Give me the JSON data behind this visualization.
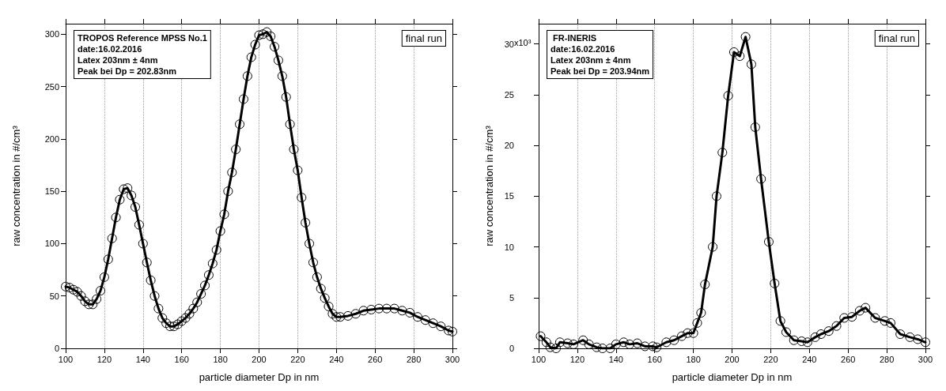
{
  "chart_data": [
    {
      "type": "line",
      "xlabel": "particle diameter Dp in nm",
      "ylabel": "raw concentration in #/cm³",
      "marker": "circle",
      "line_style": "solid",
      "grid": "x",
      "annotations": [
        "TROPOS Reference MPSS No.1\ndate:16.02.2016\nLatex 203nm ± 4nm\nPeak bei Dp = 202.83nm",
        "final run"
      ],
      "xlim": [
        100,
        300
      ],
      "xticks": [
        100,
        120,
        140,
        160,
        180,
        200,
        220,
        240,
        260,
        280,
        300
      ],
      "ylim": [
        0,
        310
      ],
      "yticks": [
        0,
        50,
        100,
        150,
        200,
        250,
        300
      ],
      "series": [
        {
          "color": "#000000",
          "x": [
            100,
            102,
            104,
            106,
            108,
            110,
            112,
            114,
            116,
            118,
            120,
            122,
            124,
            126,
            128,
            130,
            132,
            134,
            136,
            138,
            140,
            142,
            144,
            146,
            148,
            150,
            152,
            154,
            156,
            158,
            160,
            162,
            164,
            166,
            168,
            170,
            172,
            174,
            176,
            178,
            180,
            182,
            184,
            186,
            188,
            190,
            192,
            194,
            196,
            198,
            200,
            202,
            204,
            206,
            208,
            210,
            212,
            214,
            216,
            218,
            220,
            222,
            224,
            226,
            228,
            230,
            232,
            234,
            236,
            238,
            240,
            242,
            246,
            250,
            254,
            258,
            262,
            266,
            270,
            274,
            278,
            282,
            286,
            290,
            294,
            298,
            300
          ],
          "values": [
            59,
            58,
            56,
            54,
            50,
            45,
            42,
            42,
            47,
            55,
            68,
            85,
            105,
            125,
            142,
            152,
            153,
            146,
            135,
            118,
            100,
            82,
            65,
            50,
            38,
            29,
            24,
            21,
            21,
            23,
            26,
            29,
            33,
            38,
            44,
            52,
            60,
            70,
            81,
            94,
            112,
            128,
            150,
            168,
            190,
            214,
            238,
            260,
            278,
            290,
            299,
            300,
            302,
            298,
            288,
            275,
            260,
            240,
            214,
            190,
            170,
            144,
            120,
            100,
            82,
            68,
            57,
            48,
            40,
            33,
            30,
            30,
            31,
            33,
            36,
            37,
            38,
            38,
            38,
            36,
            34,
            30,
            27,
            24,
            21,
            17,
            16
          ]
        }
      ]
    },
    {
      "type": "line",
      "xlabel": "particle diameter Dp in nm",
      "ylabel": "raw concentration in #/cm³",
      "marker": "circle",
      "line_style": "solid",
      "grid": "x",
      "annotations": [
        " FR-INERIS\ndate:16.02.2016\nLatex 203nm ± 4nm\nPeak bei Dp = 203.94nm",
        "final run",
        "x10³"
      ],
      "xlim": [
        100,
        300
      ],
      "xticks": [
        100,
        120,
        140,
        160,
        180,
        200,
        220,
        240,
        260,
        280,
        300
      ],
      "ylim": [
        0,
        32
      ],
      "yticks": [
        0,
        5,
        10,
        15,
        20,
        25,
        30
      ],
      "series": [
        {
          "color": "#000000",
          "x": [
            101,
            104,
            106,
            109,
            111,
            115,
            118,
            123,
            126,
            130,
            133,
            137,
            140,
            144,
            147,
            151,
            155,
            159,
            161,
            166,
            170,
            174,
            177,
            180,
            182,
            184,
            186,
            190,
            192,
            195,
            198,
            201,
            204,
            207,
            210,
            212,
            215,
            219,
            222,
            225,
            228,
            232,
            236,
            239,
            243,
            246,
            250,
            254,
            258,
            262,
            266,
            269,
            274,
            279,
            282,
            287,
            292,
            296,
            300
          ],
          "values": [
            1.2,
            0.6,
            0.1,
            0,
            0.6,
            0.5,
            0.4,
            0.8,
            0.4,
            0.1,
            0,
            0,
            0.4,
            0.6,
            0.4,
            0.5,
            0.2,
            0.2,
            0.1,
            0.6,
            0.8,
            1.2,
            1.5,
            1.5,
            2.5,
            3.5,
            6.3,
            10,
            15,
            19.3,
            24.9,
            29.2,
            28.8,
            30.7,
            28,
            21.8,
            16.7,
            10.5,
            6.4,
            2.7,
            1.6,
            0.8,
            0.7,
            0.6,
            1.1,
            1.4,
            1.7,
            2.2,
            3,
            3.1,
            3.7,
            4,
            3,
            2.7,
            2.5,
            1.4,
            1.1,
            0.9,
            0.6
          ]
        }
      ]
    }
  ]
}
